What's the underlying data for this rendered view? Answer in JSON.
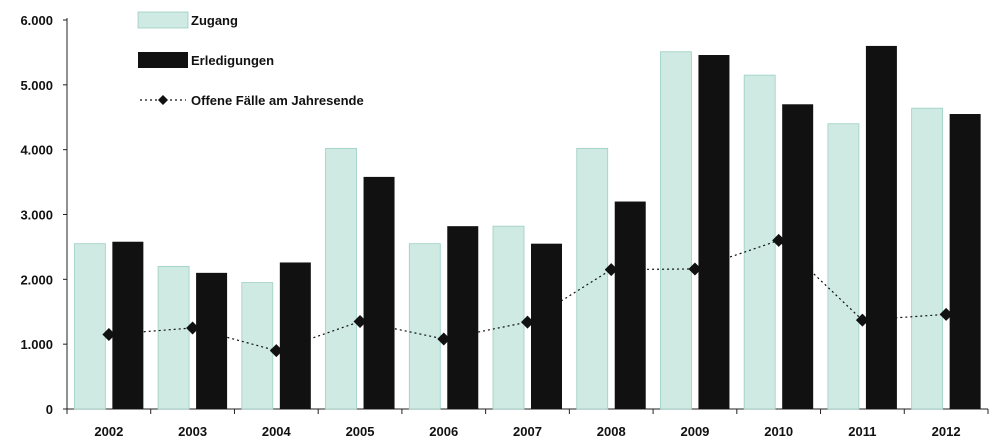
{
  "chart_data": {
    "type": "bar",
    "categories": [
      "2002",
      "2003",
      "2004",
      "2005",
      "2006",
      "2007",
      "2008",
      "2009",
      "2010",
      "2011",
      "2012"
    ],
    "series": [
      {
        "name": "Zugang",
        "type": "bar",
        "color": "#cfe9e3",
        "values": [
          2550,
          2200,
          1950,
          4020,
          2550,
          2820,
          4020,
          5510,
          5150,
          4400,
          4640
        ]
      },
      {
        "name": "Erledigungen",
        "type": "bar",
        "color": "#111111",
        "values": [
          2580,
          2100,
          2260,
          3580,
          2820,
          2550,
          3200,
          5460,
          4700,
          5600,
          4550
        ]
      },
      {
        "name": "Offene Fälle am Jahresende",
        "type": "line",
        "color": "#111111",
        "values": [
          1150,
          1250,
          900,
          1350,
          1080,
          1340,
          2150,
          2160,
          2600,
          1370,
          1460
        ]
      }
    ],
    "ylim": [
      0,
      6000
    ],
    "yticks": [
      "0",
      "1.000",
      "2.000",
      "3.000",
      "4.000",
      "5.000",
      "6.000"
    ],
    "xlabel": "",
    "ylabel": "",
    "title": "",
    "grid": false,
    "legend_position": "top-left"
  }
}
